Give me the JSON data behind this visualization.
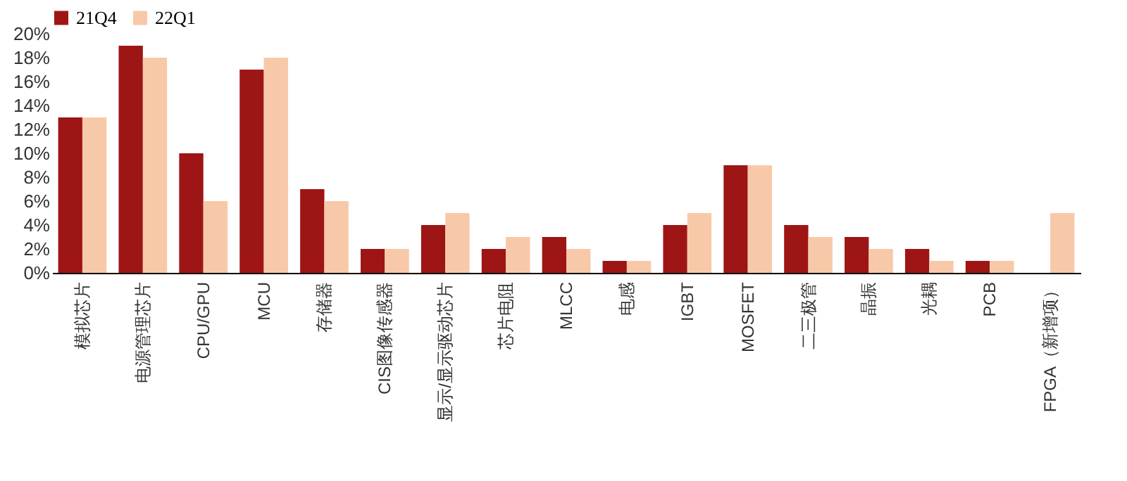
{
  "chart_data": {
    "type": "bar",
    "categories": [
      "模拟芯片",
      "电源管理芯片",
      "CPU/GPU",
      "MCU",
      "存储器",
      "CIS图像传感器",
      "显示/显示驱动芯片",
      "芯片电阻",
      "MLCC",
      "电感",
      "IGBT",
      "MOSFET",
      "二三极管",
      "晶振",
      "光耦",
      "PCB",
      "FPGA（新增项）"
    ],
    "series": [
      {
        "name": "21Q4",
        "color": "#9e1515",
        "values": [
          13,
          19,
          10,
          17,
          7,
          2,
          4,
          2,
          3,
          1,
          4,
          9,
          4,
          3,
          2,
          1,
          null
        ]
      },
      {
        "name": "22Q1",
        "color": "#f8c9a8",
        "values": [
          13,
          18,
          6,
          18,
          6,
          2,
          5,
          3,
          2,
          1,
          5,
          9,
          3,
          2,
          1,
          1,
          5
        ]
      }
    ],
    "ylim": [
      0,
      20
    ],
    "yticks": [
      {
        "value": 0,
        "label": "0%"
      },
      {
        "value": 2,
        "label": "2%"
      },
      {
        "value": 4,
        "label": "4%"
      },
      {
        "value": 6,
        "label": "6%"
      },
      {
        "value": 8,
        "label": "8%"
      },
      {
        "value": 10,
        "label": "10%"
      },
      {
        "value": 12,
        "label": "12%"
      },
      {
        "value": 14,
        "label": "14%"
      },
      {
        "value": 16,
        "label": "16%"
      },
      {
        "value": 18,
        "label": "18%"
      },
      {
        "value": 20,
        "label": "20%"
      }
    ],
    "legend": "top",
    "grid": false
  }
}
